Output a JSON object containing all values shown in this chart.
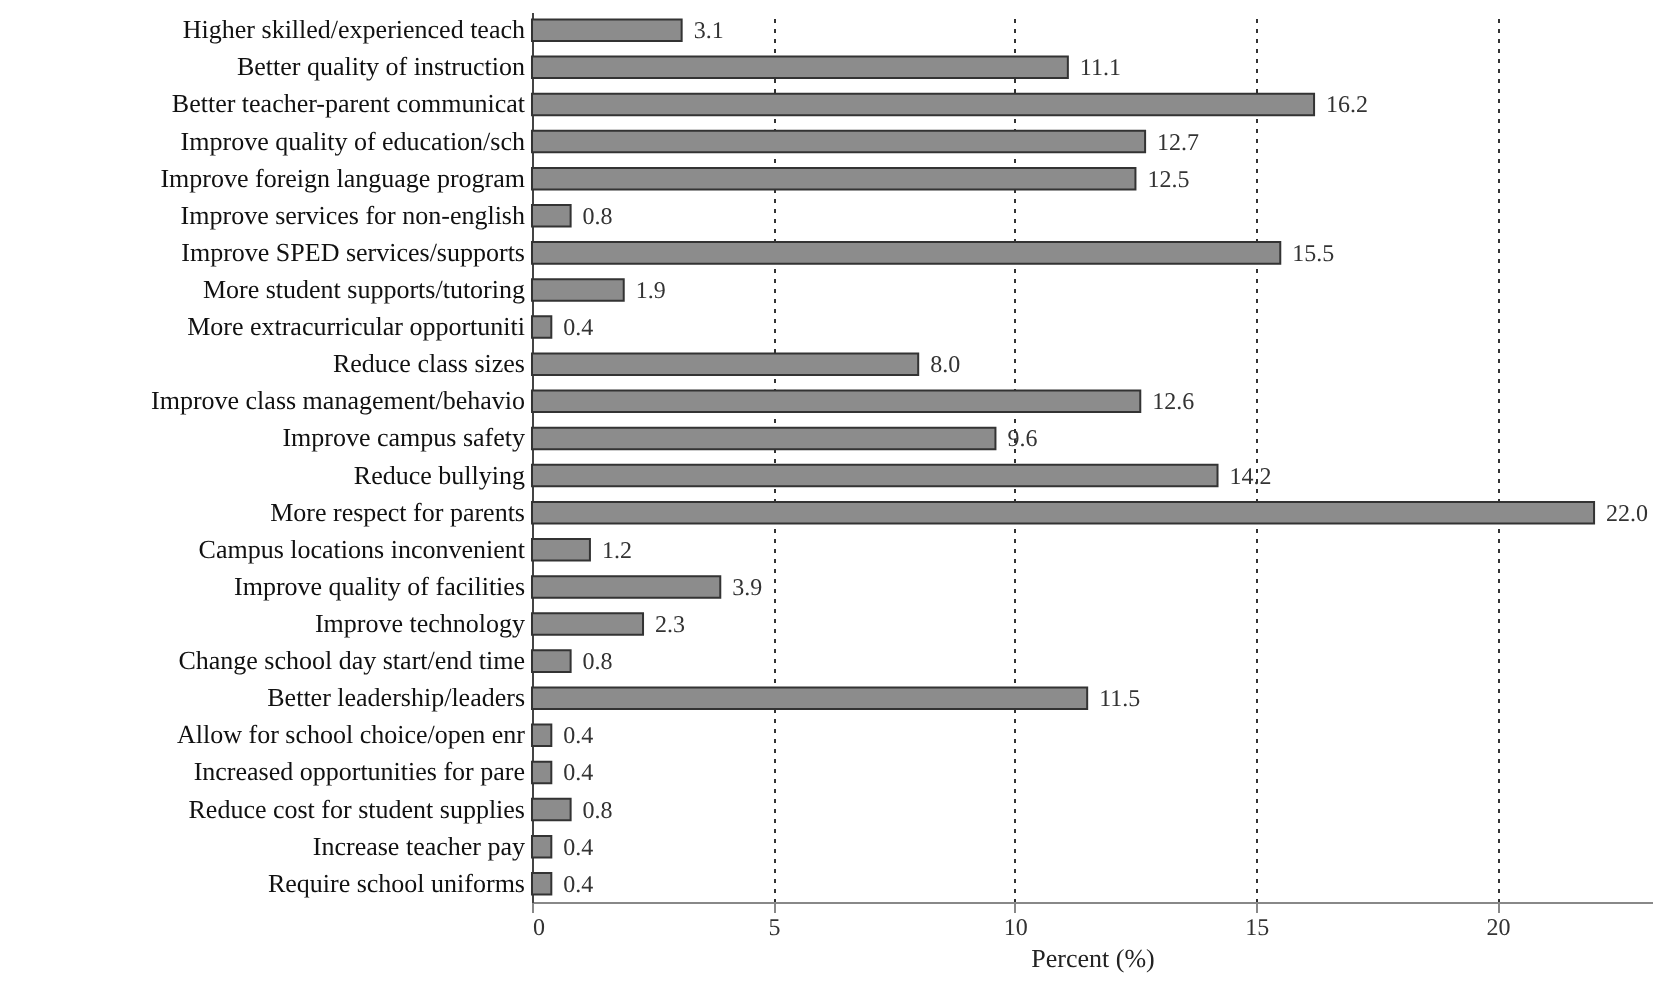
{
  "chart_data": {
    "type": "bar",
    "orientation": "horizontal",
    "xlabel": "Percent (%)",
    "categories": [
      "Higher skilled/experienced teach",
      "Better quality of instruction",
      "Better teacher-parent communicat",
      "Improve quality of education/sch",
      "Improve foreign language program",
      "Improve services for non-english",
      "Improve SPED services/supports",
      "More student supports/tutoring",
      "More extracurricular opportuniti",
      "Reduce class sizes",
      "Improve class management/behavio",
      "Improve campus safety",
      "Reduce bullying",
      "More respect for parents",
      "Campus locations inconvenient",
      "Improve quality of facilities",
      "Improve technology",
      "Change school day start/end time",
      "Better leadership/leaders",
      "Allow for school choice/open enr",
      "Increased opportunities for pare",
      "Reduce cost for student supplies",
      "Increase teacher pay",
      "Require school uniforms"
    ],
    "values": [
      3.1,
      11.1,
      16.2,
      12.7,
      12.5,
      0.8,
      15.5,
      1.9,
      0.4,
      8.0,
      12.6,
      9.6,
      14.2,
      22.0,
      1.2,
      3.9,
      2.3,
      0.8,
      11.5,
      0.4,
      0.4,
      0.8,
      0.4,
      0.4
    ],
    "value_labels": [
      "3.1",
      "11.1",
      "16.2",
      "12.7",
      "12.5",
      "0.8",
      "15.5",
      "1.9",
      "0.4",
      "8.0",
      "12.6",
      "9.6",
      "14.2",
      "22.0",
      "1.2",
      "3.9",
      "2.3",
      "0.8",
      "11.5",
      "0.4",
      "0.4",
      "0.8",
      "0.4",
      "0.4"
    ],
    "color": "#8c8c8c",
    "xlim": [
      0,
      23.2
    ],
    "xticks": [
      0,
      5,
      10,
      15,
      20
    ],
    "grid": "x"
  }
}
